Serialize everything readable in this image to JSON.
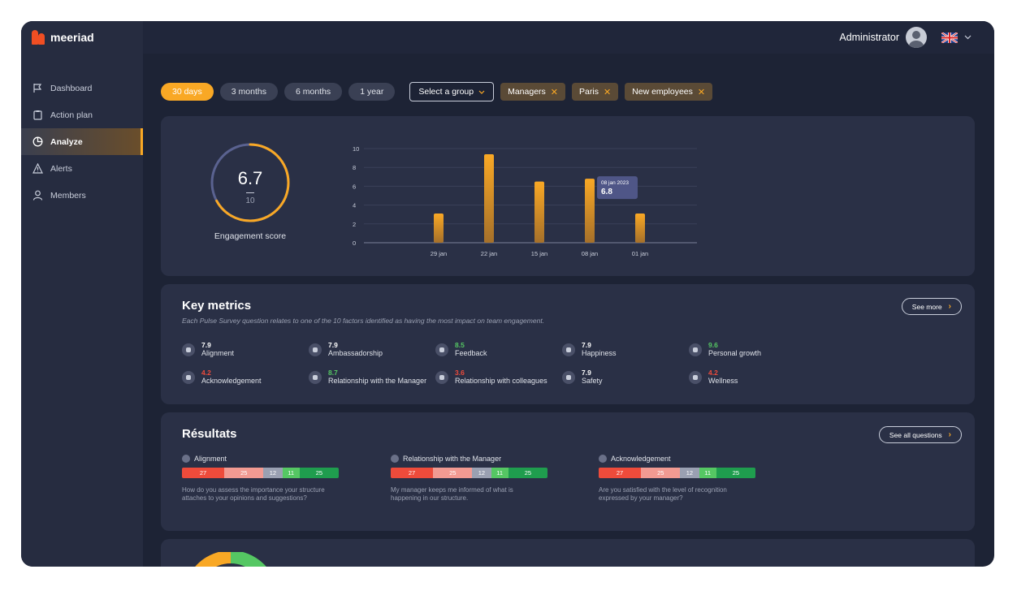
{
  "brand": {
    "name": "meeriad",
    "color": "#f04e23"
  },
  "accent": "#f9a825",
  "sidebar": {
    "items": [
      {
        "label": "Dashboard",
        "icon": "flag-icon",
        "active": false
      },
      {
        "label": "Action plan",
        "icon": "clipboard-icon",
        "active": false
      },
      {
        "label": "Analyze",
        "icon": "pie-chart-icon",
        "active": true
      },
      {
        "label": "Alerts",
        "icon": "warning-icon",
        "active": false
      },
      {
        "label": "Members",
        "icon": "user-icon",
        "active": false
      }
    ]
  },
  "header": {
    "user_name": "Administrator",
    "language_icon": "uk-flag-icon"
  },
  "filters": {
    "periods": [
      "30 days",
      "3 months",
      "6 months",
      "1 year"
    ],
    "active_period": "30 days",
    "group_select_label": "Select a group",
    "chips": [
      "Managers",
      "Paris",
      "New employees"
    ]
  },
  "engagement": {
    "score": "6.7",
    "denominator": "10",
    "score_value": 6.7,
    "label": "Engagement score"
  },
  "chart_data": {
    "type": "bar",
    "categories": [
      "29 jan",
      "22 jan",
      "15 jan",
      "08 jan",
      "01 jan"
    ],
    "values": [
      3.1,
      9.4,
      6.5,
      6.8,
      3.1
    ],
    "ylim": [
      0,
      10
    ],
    "yticks": [
      0,
      2,
      4,
      6,
      8,
      10
    ],
    "grid": true,
    "tooltip": {
      "date": "08 jan 2023",
      "value": "6.8"
    }
  },
  "key_metrics": {
    "title": "Key metrics",
    "subtitle": "Each Pulse Survey question relates to one of the 10 factors identified as having the most impact on team engagement.",
    "see_more": "See more",
    "items": [
      {
        "value": "7.9",
        "name": "Alignment",
        "status": "neutral"
      },
      {
        "value": "7.9",
        "name": "Ambassadorship",
        "status": "neutral"
      },
      {
        "value": "8.5",
        "name": "Feedback",
        "status": "green"
      },
      {
        "value": "7.9",
        "name": "Happiness",
        "status": "neutral"
      },
      {
        "value": "9.6",
        "name": "Personal growth",
        "status": "green"
      },
      {
        "value": "4.2",
        "name": "Acknowledgement",
        "status": "red"
      },
      {
        "value": "8.7",
        "name": "Relationship with the Manager",
        "status": "green"
      },
      {
        "value": "3.6",
        "name": "Relationship with colleagues",
        "status": "red"
      },
      {
        "value": "7.9",
        "name": "Safety",
        "status": "neutral"
      },
      {
        "value": "4.2",
        "name": "Wellness",
        "status": "red"
      }
    ]
  },
  "results": {
    "title": "Résultats",
    "see_all": "See all questions",
    "segment_colors": [
      "#ee4b3b",
      "#f29a92",
      "#9aa0b2",
      "#55c763",
      "#1f9d4e"
    ],
    "items": [
      {
        "factor": "Alignment",
        "segments": [
          27,
          25,
          12,
          11,
          25
        ],
        "question": "How do you assess the importance your structure attaches to your opinions and suggestions?"
      },
      {
        "factor": "Relationship with the Manager",
        "segments": [
          27,
          25,
          12,
          11,
          25
        ],
        "question": "My manager keeps me informed of what is happening in our structure."
      },
      {
        "factor": "Acknowledgement",
        "segments": [
          27,
          25,
          12,
          11,
          25
        ],
        "question": "Are you satisfied with the level of recognition expressed by your manager?"
      }
    ]
  }
}
